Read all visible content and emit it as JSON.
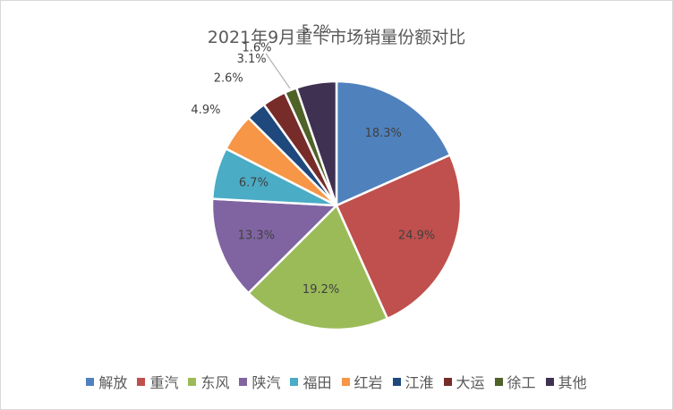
{
  "chart_data": {
    "type": "pie",
    "title": "2021年9月重卡市场销量份额对比",
    "categories": [
      "解放",
      "重汽",
      "东风",
      "陕汽",
      "福田",
      "红岩",
      "江淮",
      "大运",
      "徐工",
      "其他"
    ],
    "values": [
      18.3,
      24.9,
      19.2,
      13.3,
      6.7,
      4.9,
      2.6,
      3.1,
      1.6,
      5.2
    ],
    "labels": [
      "18.3%",
      "24.9%",
      "19.2%",
      "13.3%",
      "6.7%",
      "4.9%",
      "2.6%",
      "3.1%",
      "1.6%",
      "5.2%"
    ],
    "colors": [
      "#4F81BD",
      "#C0504D",
      "#9BBB59",
      "#8064A2",
      "#4BACC6",
      "#F79646",
      "#1F497D",
      "#772C2A",
      "#4F6228",
      "#3F3151"
    ],
    "legend_position": "bottom"
  }
}
